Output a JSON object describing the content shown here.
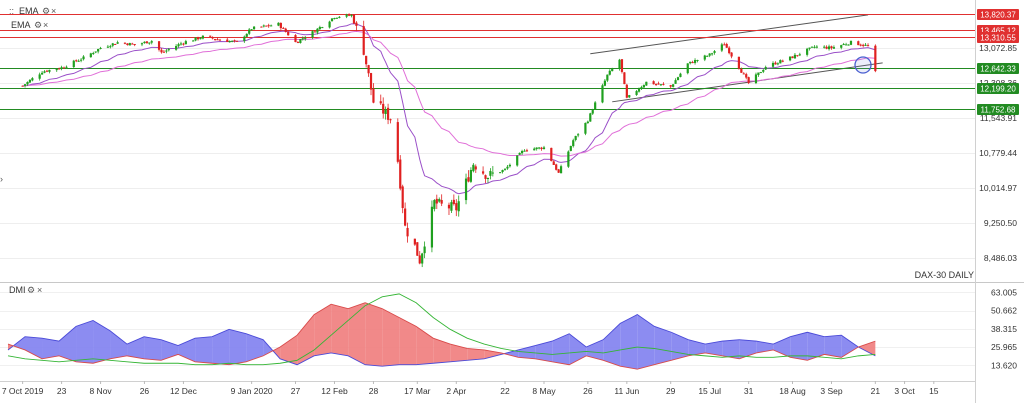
{
  "chart_data": [
    {
      "type": "candlestick",
      "title": "DAX-30 DAILY",
      "indicators": [
        "EMA",
        "EMA"
      ],
      "y_axis": {
        "position": "right",
        "ticks": [
          "13,072.85",
          "12,308.36",
          "11,543.91",
          "10,779.44",
          "10,014.97",
          "9,250.50",
          "8,486.03"
        ],
        "tick_values": [
          13072.85,
          12308.36,
          11543.91,
          10779.44,
          10014.97,
          9250.5,
          8486.03
        ],
        "range": [
          8050,
          13950
        ]
      },
      "x_axis": {
        "ticks": [
          "7 Oct 2019",
          "23",
          "8 Nov",
          "26",
          "12 Dec",
          "9 Jan 2020",
          "27",
          "12 Feb",
          "28",
          "17 Mar",
          "2 Apr",
          "22",
          "8 May",
          "26",
          "11 Jun",
          "29",
          "15 Jul",
          "31",
          "18 Aug",
          "3 Sep",
          "21",
          "3 Oct",
          "15"
        ]
      },
      "horizontal_levels": [
        {
          "label": "13,820.37",
          "value": 13820.37,
          "color": "#e03030"
        },
        {
          "label": "13,465.12",
          "value": 13465.12,
          "color": "#e03030"
        },
        {
          "label": "13,310.55",
          "value": 13310.55,
          "color": "#e03030"
        },
        {
          "label": "12,642.33",
          "value": 12642.33,
          "color": "#228b22"
        },
        {
          "label": "12,199.20",
          "value": 12199.2,
          "color": "#228b22"
        },
        {
          "label": "11,752.68",
          "value": 11752.68,
          "color": "#228b22"
        }
      ],
      "trendlines": [
        {
          "from": [
            "2020-05-27",
            12950
          ],
          "to": [
            "2020-09-18",
            13800
          ]
        },
        {
          "from": [
            "2020-06-05",
            11900
          ],
          "to": [
            "2020-09-24",
            12750
          ]
        }
      ],
      "closes": [
        {
          "date": "2019-10-07",
          "close": 12250
        },
        {
          "date": "2019-10-15",
          "close": 12560
        },
        {
          "date": "2019-10-23",
          "close": 12650
        },
        {
          "date": "2019-11-01",
          "close": 12860
        },
        {
          "date": "2019-11-08",
          "close": 13080
        },
        {
          "date": "2019-11-15",
          "close": 13200
        },
        {
          "date": "2019-11-22",
          "close": 13150
        },
        {
          "date": "2019-11-29",
          "close": 13230
        },
        {
          "date": "2019-12-03",
          "close": 12970
        },
        {
          "date": "2019-12-12",
          "close": 13200
        },
        {
          "date": "2019-12-20",
          "close": 13320
        },
        {
          "date": "2020-01-03",
          "close": 13200
        },
        {
          "date": "2020-01-09",
          "close": 13500
        },
        {
          "date": "2020-01-20",
          "close": 13600
        },
        {
          "date": "2020-01-27",
          "close": 13200
        },
        {
          "date": "2020-02-04",
          "close": 13450
        },
        {
          "date": "2020-02-12",
          "close": 13760
        },
        {
          "date": "2020-02-19",
          "close": 13790
        },
        {
          "date": "2020-02-24",
          "close": 13030
        },
        {
          "date": "2020-02-28",
          "close": 11900
        },
        {
          "date": "2020-03-06",
          "close": 11540
        },
        {
          "date": "2020-03-09",
          "close": 10620
        },
        {
          "date": "2020-03-12",
          "close": 9160
        },
        {
          "date": "2020-03-16",
          "close": 8740
        },
        {
          "date": "2020-03-18",
          "close": 8440
        },
        {
          "date": "2020-03-24",
          "close": 9700
        },
        {
          "date": "2020-03-27",
          "close": 9630
        },
        {
          "date": "2020-04-02",
          "close": 9570
        },
        {
          "date": "2020-04-09",
          "close": 10560
        },
        {
          "date": "2020-04-15",
          "close": 10280
        },
        {
          "date": "2020-04-22",
          "close": 10420
        },
        {
          "date": "2020-04-30",
          "close": 10860
        },
        {
          "date": "2020-05-08",
          "close": 10900
        },
        {
          "date": "2020-05-14",
          "close": 10340
        },
        {
          "date": "2020-05-20",
          "close": 11060
        },
        {
          "date": "2020-05-26",
          "close": 11500
        },
        {
          "date": "2020-06-03",
          "close": 12480
        },
        {
          "date": "2020-06-08",
          "close": 12820
        },
        {
          "date": "2020-06-11",
          "close": 11970
        },
        {
          "date": "2020-06-19",
          "close": 12330
        },
        {
          "date": "2020-06-29",
          "close": 12230
        },
        {
          "date": "2020-07-06",
          "close": 12730
        },
        {
          "date": "2020-07-15",
          "close": 12930
        },
        {
          "date": "2020-07-21",
          "close": 13170
        },
        {
          "date": "2020-07-31",
          "close": 12310
        },
        {
          "date": "2020-08-07",
          "close": 12670
        },
        {
          "date": "2020-08-18",
          "close": 12880
        },
        {
          "date": "2020-08-27",
          "close": 13100
        },
        {
          "date": "2020-09-03",
          "close": 13080
        },
        {
          "date": "2020-09-11",
          "close": 13200
        },
        {
          "date": "2020-09-18",
          "close": 13120
        },
        {
          "date": "2020-09-21",
          "close": 12540
        }
      ]
    },
    {
      "type": "area",
      "title": "DMI",
      "y_axis": {
        "position": "right",
        "ticks": [
          "63.005",
          "50.662",
          "38.315",
          "25.965",
          "13.620"
        ],
        "tick_values": [
          63.005,
          50.662,
          38.315,
          25.965,
          13.62
        ],
        "range": [
          5,
          66
        ]
      },
      "series": [
        {
          "color": "#7b7bf0",
          "values": [
            24,
            33,
            32,
            30,
            40,
            44,
            37,
            28,
            33,
            31,
            27,
            32,
            33,
            38,
            35,
            31,
            18,
            14,
            20,
            22,
            20,
            14,
            13,
            14,
            14,
            15,
            16,
            17,
            18,
            21,
            24,
            27,
            30,
            35,
            26,
            31,
            42,
            48,
            40,
            36,
            31,
            28,
            30,
            31,
            30,
            28,
            33,
            36,
            33,
            34,
            26,
            20
          ]
        },
        {
          "color": "#f07878",
          "values": [
            28,
            24,
            18,
            20,
            16,
            15,
            18,
            20,
            18,
            17,
            21,
            16,
            15,
            14,
            16,
            20,
            26,
            34,
            48,
            55,
            52,
            56,
            52,
            46,
            40,
            32,
            28,
            25,
            24,
            22,
            19,
            18,
            16,
            14,
            20,
            17,
            13,
            11,
            14,
            17,
            20,
            22,
            20,
            18,
            22,
            24,
            19,
            17,
            21,
            19,
            26,
            30
          ]
        },
        {
          "color": "#22bb22",
          "values": [
            20,
            18,
            17,
            16,
            17,
            18,
            17,
            16,
            15,
            15,
            15,
            14,
            14,
            15,
            14,
            14,
            15,
            17,
            24,
            34,
            44,
            54,
            60,
            62,
            56,
            46,
            38,
            32,
            28,
            25,
            23,
            22,
            21,
            22,
            23,
            22,
            24,
            26,
            25,
            23,
            21,
            20,
            19,
            20,
            19,
            19,
            20,
            20,
            19,
            18,
            20,
            21
          ]
        }
      ]
    }
  ]
}
